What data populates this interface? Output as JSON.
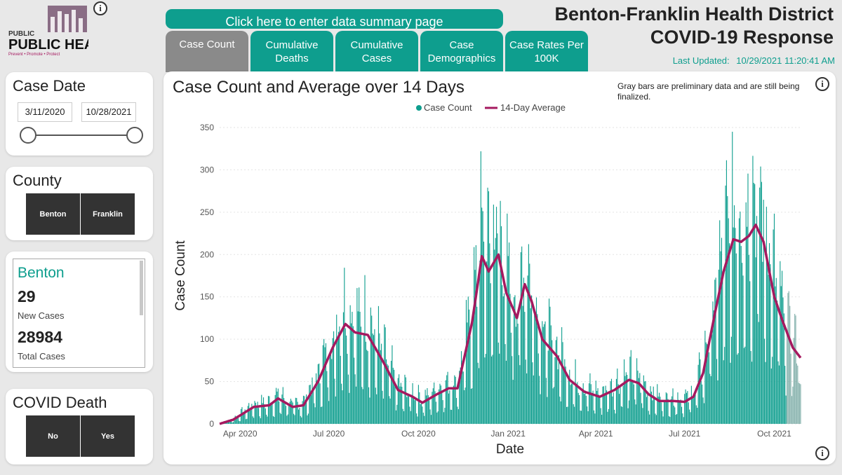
{
  "header": {
    "logo_text": "PUBLIC HEALTH",
    "logo_tagline": "Prevent • Promote • Protect",
    "summary_button": "Click here to enter data summary page",
    "title_line1": "Benton-Franklin Health District",
    "title_line2": "COVID-19 Response",
    "last_updated_label": "Last Updated:",
    "last_updated_value": "10/29/2021 11:20:41 AM",
    "info_glyph": "i"
  },
  "tabs": [
    {
      "label": "Case Count",
      "active": true
    },
    {
      "label": "Cumulative Deaths",
      "active": false
    },
    {
      "label": "Cumulative Cases",
      "active": false
    },
    {
      "label": "Case Demographics",
      "active": false
    },
    {
      "label": "Case Rates Per 100K",
      "active": false
    }
  ],
  "filters": {
    "case_date": {
      "title": "Case Date",
      "start": "3/11/2020",
      "end": "10/28/2021"
    },
    "county": {
      "title": "County",
      "options": [
        "Benton",
        "Franklin"
      ]
    },
    "covid_death": {
      "title": "COVID Death",
      "options": [
        "No",
        "Yes"
      ]
    }
  },
  "stats": {
    "county": "Benton",
    "new_cases": "29",
    "new_cases_label": "New Cases",
    "total_cases": "28984",
    "total_cases_label": "Total Cases"
  },
  "colors": {
    "teal": "#0e9e8e",
    "avg_line": "#a5195f",
    "prelim": "#9e9e9e"
  },
  "chart_data": {
    "type": "bar",
    "title": "Case Count and Average over 14 Days",
    "note": "Gray bars are preliminary data and are still being finalized.",
    "xlabel": "Date",
    "ylabel": "Case Count",
    "ylim": [
      0,
      350
    ],
    "yticks": [
      0,
      50,
      100,
      150,
      200,
      250,
      300,
      350
    ],
    "x_range": [
      "2020-03-11",
      "2021-10-28"
    ],
    "xticks": [
      {
        "label": "Apr 2020",
        "date": "2020-04-01"
      },
      {
        "label": "Jul 2020",
        "date": "2020-07-01"
      },
      {
        "label": "Oct 2020",
        "date": "2020-10-01"
      },
      {
        "label": "Jan 2021",
        "date": "2021-01-01"
      },
      {
        "label": "Apr 2021",
        "date": "2021-04-01"
      },
      {
        "label": "Jul 2021",
        "date": "2021-07-01"
      },
      {
        "label": "Oct 2021",
        "date": "2021-10-01"
      }
    ],
    "legend": "top-center",
    "series": [
      {
        "name": "Case Count",
        "kind": "bar",
        "color": "#0e9e8e"
      },
      {
        "name": "14-Day Average",
        "kind": "line",
        "color": "#a5195f"
      }
    ],
    "avg_profile": [
      [
        "2020-03-11",
        0
      ],
      [
        "2020-03-25",
        5
      ],
      [
        "2020-04-15",
        20
      ],
      [
        "2020-05-01",
        22
      ],
      [
        "2020-05-10",
        30
      ],
      [
        "2020-05-25",
        20
      ],
      [
        "2020-06-05",
        22
      ],
      [
        "2020-06-20",
        50
      ],
      [
        "2020-07-05",
        90
      ],
      [
        "2020-07-18",
        118
      ],
      [
        "2020-07-28",
        108
      ],
      [
        "2020-08-10",
        105
      ],
      [
        "2020-08-25",
        75
      ],
      [
        "2020-09-10",
        40
      ],
      [
        "2020-09-25",
        32
      ],
      [
        "2020-10-05",
        25
      ],
      [
        "2020-10-20",
        35
      ],
      [
        "2020-11-01",
        42
      ],
      [
        "2020-11-10",
        42
      ],
      [
        "2020-11-25",
        120
      ],
      [
        "2020-12-05",
        198
      ],
      [
        "2020-12-12",
        180
      ],
      [
        "2020-12-22",
        200
      ],
      [
        "2020-12-30",
        155
      ],
      [
        "2021-01-10",
        125
      ],
      [
        "2021-01-18",
        165
      ],
      [
        "2021-01-25",
        145
      ],
      [
        "2021-02-05",
        100
      ],
      [
        "2021-02-20",
        80
      ],
      [
        "2021-03-05",
        52
      ],
      [
        "2021-03-20",
        38
      ],
      [
        "2021-04-05",
        32
      ],
      [
        "2021-04-20",
        40
      ],
      [
        "2021-05-05",
        52
      ],
      [
        "2021-05-15",
        48
      ],
      [
        "2021-05-25",
        35
      ],
      [
        "2021-06-05",
        27
      ],
      [
        "2021-06-20",
        27
      ],
      [
        "2021-07-01",
        26
      ],
      [
        "2021-07-10",
        32
      ],
      [
        "2021-07-20",
        60
      ],
      [
        "2021-08-01",
        130
      ],
      [
        "2021-08-10",
        180
      ],
      [
        "2021-08-20",
        218
      ],
      [
        "2021-08-28",
        215
      ],
      [
        "2021-09-05",
        222
      ],
      [
        "2021-09-12",
        235
      ],
      [
        "2021-09-20",
        215
      ],
      [
        "2021-10-01",
        150
      ],
      [
        "2021-10-10",
        120
      ],
      [
        "2021-10-20",
        90
      ],
      [
        "2021-10-28",
        78
      ]
    ],
    "preliminary_from": "2021-10-14"
  }
}
